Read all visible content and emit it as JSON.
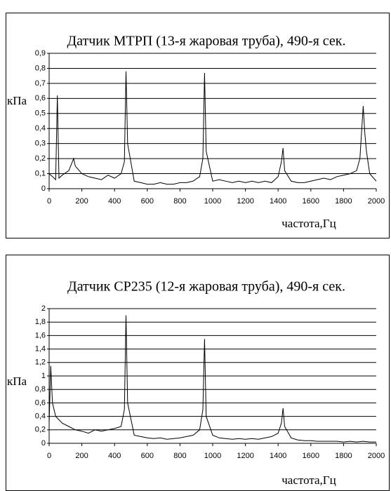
{
  "chart_data": [
    {
      "type": "line",
      "title": "Датчик МТРП (13-я жаровая труба), 490-я сек.",
      "y_label": "кПа",
      "x_label": "частота,Гц",
      "x": [
        0,
        20,
        40,
        50,
        60,
        80,
        120,
        150,
        160,
        200,
        240,
        280,
        320,
        360,
        400,
        440,
        460,
        470,
        480,
        520,
        560,
        600,
        640,
        680,
        720,
        760,
        800,
        840,
        880,
        920,
        940,
        950,
        960,
        1000,
        1040,
        1080,
        1120,
        1160,
        1200,
        1240,
        1280,
        1320,
        1360,
        1400,
        1420,
        1430,
        1440,
        1480,
        1520,
        1560,
        1600,
        1640,
        1680,
        1720,
        1760,
        1800,
        1840,
        1880,
        1900,
        1920,
        1930,
        1940,
        1960,
        2000
      ],
      "series": [
        {
          "color": "#000000",
          "values": [
            0.1,
            0.08,
            0.06,
            0.62,
            0.07,
            0.09,
            0.12,
            0.2,
            0.15,
            0.1,
            0.08,
            0.07,
            0.06,
            0.09,
            0.07,
            0.1,
            0.18,
            0.78,
            0.3,
            0.05,
            0.04,
            0.03,
            0.03,
            0.04,
            0.03,
            0.03,
            0.04,
            0.04,
            0.05,
            0.08,
            0.2,
            0.77,
            0.25,
            0.05,
            0.06,
            0.05,
            0.04,
            0.05,
            0.04,
            0.05,
            0.04,
            0.05,
            0.04,
            0.08,
            0.18,
            0.27,
            0.12,
            0.05,
            0.04,
            0.04,
            0.05,
            0.06,
            0.07,
            0.06,
            0.08,
            0.09,
            0.1,
            0.12,
            0.2,
            0.55,
            0.37,
            0.25,
            0.1,
            0.05
          ]
        }
      ],
      "xlim": [
        0,
        2000
      ],
      "xticks": [
        0,
        200,
        400,
        600,
        800,
        1000,
        1200,
        1400,
        1600,
        1800,
        2000
      ],
      "ylim": [
        0,
        0.9
      ],
      "yticks": [
        0,
        {
          "value": 0.1,
          "label": "0,1"
        },
        {
          "value": 0.2,
          "label": "0,2"
        },
        {
          "value": 0.3,
          "label": "0,3"
        },
        {
          "value": 0.4,
          "label": "0,4"
        },
        {
          "value": 0.5,
          "label": "0,5"
        },
        {
          "value": 0.6,
          "label": "0,6"
        },
        {
          "value": 0.7,
          "label": "0,7"
        },
        {
          "value": 0.8,
          "label": "0,8"
        },
        {
          "value": 0.9,
          "label": "0,9"
        }
      ],
      "grid": true
    },
    {
      "type": "line",
      "title": "Датчик СР235 (12-я жаровая труба), 490-я сек.",
      "y_label": "кПа",
      "x_label": "частота,Гц",
      "x": [
        0,
        10,
        20,
        40,
        80,
        120,
        160,
        200,
        240,
        280,
        320,
        360,
        400,
        440,
        460,
        470,
        480,
        520,
        560,
        600,
        640,
        680,
        720,
        760,
        800,
        840,
        880,
        920,
        940,
        950,
        960,
        1000,
        1040,
        1080,
        1120,
        1160,
        1200,
        1240,
        1280,
        1320,
        1360,
        1400,
        1420,
        1430,
        1440,
        1480,
        1520,
        1560,
        1600,
        1640,
        1680,
        1720,
        1760,
        1800,
        1840,
        1880,
        1920,
        1960,
        2000
      ],
      "series": [
        {
          "color": "#000000",
          "values": [
            0.3,
            1.15,
            0.6,
            0.4,
            0.3,
            0.25,
            0.2,
            0.18,
            0.15,
            0.2,
            0.18,
            0.2,
            0.22,
            0.25,
            0.5,
            1.9,
            0.6,
            0.12,
            0.1,
            0.08,
            0.07,
            0.08,
            0.06,
            0.07,
            0.08,
            0.1,
            0.12,
            0.2,
            0.5,
            1.55,
            0.4,
            0.12,
            0.08,
            0.07,
            0.06,
            0.07,
            0.06,
            0.07,
            0.06,
            0.08,
            0.1,
            0.15,
            0.3,
            0.52,
            0.25,
            0.08,
            0.05,
            0.04,
            0.04,
            0.03,
            0.03,
            0.03,
            0.03,
            0.02,
            0.03,
            0.02,
            0.03,
            0.02,
            0.02
          ]
        }
      ],
      "xlim": [
        0,
        2000
      ],
      "xticks": [
        0,
        200,
        400,
        600,
        800,
        1000,
        1200,
        1400,
        1600,
        1800,
        2000
      ],
      "ylim": [
        0,
        2
      ],
      "yticks": [
        0,
        {
          "value": 0.2,
          "label": "0,2"
        },
        {
          "value": 0.4,
          "label": "0,4"
        },
        {
          "value": 0.6,
          "label": "0,6"
        },
        {
          "value": 0.8,
          "label": "0,8"
        },
        1,
        {
          "value": 1.2,
          "label": "1,2"
        },
        {
          "value": 1.4,
          "label": "1,4"
        },
        {
          "value": 1.6,
          "label": "1,6"
        },
        {
          "value": 1.8,
          "label": "1,8"
        },
        2
      ],
      "grid": true
    }
  ]
}
